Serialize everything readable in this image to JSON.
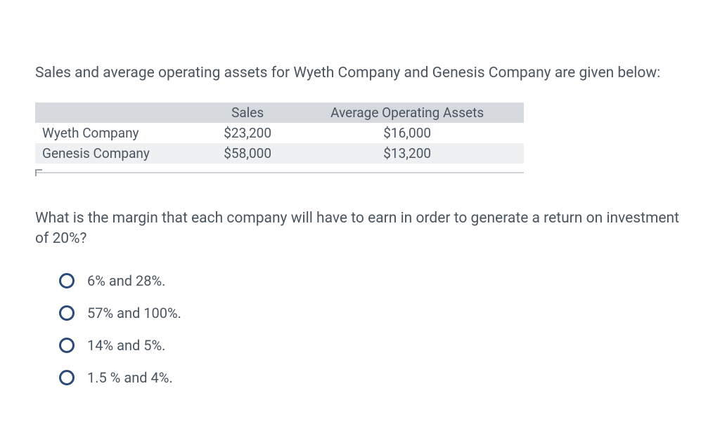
{
  "intro": "Sales and average operating assets for Wyeth Company and Genesis Company are given below:",
  "table": {
    "columns": [
      "",
      "Sales",
      "Average Operating Assets"
    ],
    "rows": [
      {
        "company": "Wyeth Company",
        "sales": "$23,200",
        "assets": "$16,000"
      },
      {
        "company": "Genesis Company",
        "sales": "$58,000",
        "assets": "$13,200"
      }
    ],
    "header_bg": "#d6d9de",
    "row_alt_bg": "#eef0f2",
    "text_color": "#4a5560",
    "font_size_pt": 14
  },
  "question": "What is the margin that each company will have to earn in order to generate a return on investment of 20%?",
  "options": [
    {
      "label": "6% and 28%."
    },
    {
      "label": "57% and 100%."
    },
    {
      "label": "14% and 5%."
    },
    {
      "label": "1.5 % and 4%."
    }
  ],
  "colors": {
    "body_text": "#4a5560",
    "radio_border": "#2b4a78",
    "background": "#ffffff"
  }
}
